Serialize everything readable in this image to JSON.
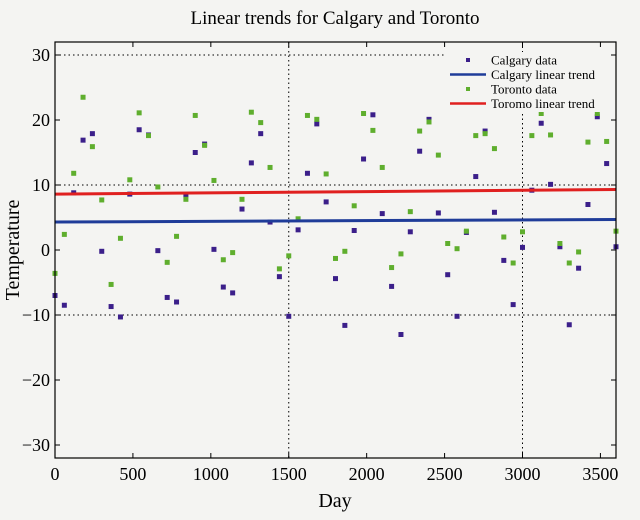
{
  "chart_data": {
    "type": "scatter",
    "title": "Linear trends for Calgary and Toronto",
    "xlabel": "Day",
    "ylabel": "Temperature",
    "xlim": [
      0,
      3600
    ],
    "ylim": [
      -32,
      32
    ],
    "xticks": [
      0,
      500,
      1000,
      1500,
      2000,
      2500,
      3000,
      3500
    ],
    "yticks": [
      -30,
      -20,
      -10,
      0,
      10,
      20,
      30
    ],
    "grid_x": [
      0,
      1500,
      3000
    ],
    "grid_y": [
      -10,
      10,
      30
    ],
    "grid": "dotted",
    "legend_position": "top-right",
    "x": [
      0,
      60,
      120,
      180,
      240,
      300,
      360,
      420,
      480,
      540,
      600,
      660,
      720,
      780,
      840,
      900,
      960,
      1020,
      1080,
      1140,
      1200,
      1260,
      1320,
      1380,
      1440,
      1500,
      1560,
      1620,
      1680,
      1740,
      1800,
      1860,
      1920,
      1980,
      2040,
      2100,
      2160,
      2220,
      2280,
      2340,
      2400,
      2460,
      2520,
      2580,
      2640,
      2700,
      2760,
      2820,
      2880,
      2940,
      3000,
      3060,
      3120,
      3180,
      3240,
      3300,
      3360,
      3420,
      3480,
      3540,
      3600
    ],
    "series": [
      {
        "name": "Calgary data",
        "kind": "points",
        "color": "#3b1f8a",
        "values": [
          -7,
          -8.5,
          8.8,
          16.9,
          17.9,
          -0.2,
          -8.7,
          -10.3,
          8.6,
          18.5,
          17.7,
          -0.1,
          -7.3,
          -8,
          8.5,
          15,
          16.3,
          0.1,
          -5.7,
          -6.6,
          6.3,
          13.4,
          17.9,
          4.3,
          -4.1,
          -10.2,
          3.1,
          11.8,
          19.4,
          7.4,
          -4.4,
          -11.6,
          3,
          14,
          20.8,
          5.6,
          -5.6,
          -13,
          2.8,
          15.2,
          20.1,
          5.7,
          -3.8,
          -10.2,
          2.7,
          11.3,
          18.3,
          5.8,
          -1.6,
          -8.4,
          0.4,
          9.2,
          19.5,
          10.1,
          0.5,
          -11.5,
          -2.8,
          7,
          20.5,
          13.3,
          0.5
        ]
      },
      {
        "name": "Calgary linear trend",
        "kind": "line",
        "color": "#1f3c99",
        "x": [
          0,
          3600
        ],
        "values": [
          4.3,
          4.7
        ]
      },
      {
        "name": "Toronto data",
        "kind": "points",
        "color": "#5fae2e",
        "values": [
          -3.6,
          2.4,
          11.8,
          23.5,
          15.9,
          7.7,
          -5.3,
          1.8,
          10.8,
          21.1,
          17.6,
          9.7,
          -1.9,
          2.1,
          7.8,
          20.7,
          16.1,
          10.7,
          -1.5,
          -0.4,
          7.8,
          21.2,
          19.6,
          12.7,
          -2.9,
          -0.9,
          4.8,
          20.7,
          20.1,
          11.7,
          -1.3,
          -0.2,
          6.8,
          21,
          18.4,
          12.7,
          -2.7,
          -0.6,
          5.9,
          18.3,
          19.7,
          14.6,
          1,
          0.2,
          2.9,
          17.6,
          17.9,
          15.6,
          2,
          -2,
          2.8,
          17.6,
          21,
          17.7,
          1,
          -2,
          -0.3,
          16.6,
          21,
          16.7,
          2.9
        ]
      },
      {
        "name": "Toromo linear trend",
        "kind": "line",
        "color": "#e02020",
        "x": [
          0,
          3600
        ],
        "values": [
          8.6,
          9.3
        ]
      }
    ]
  }
}
